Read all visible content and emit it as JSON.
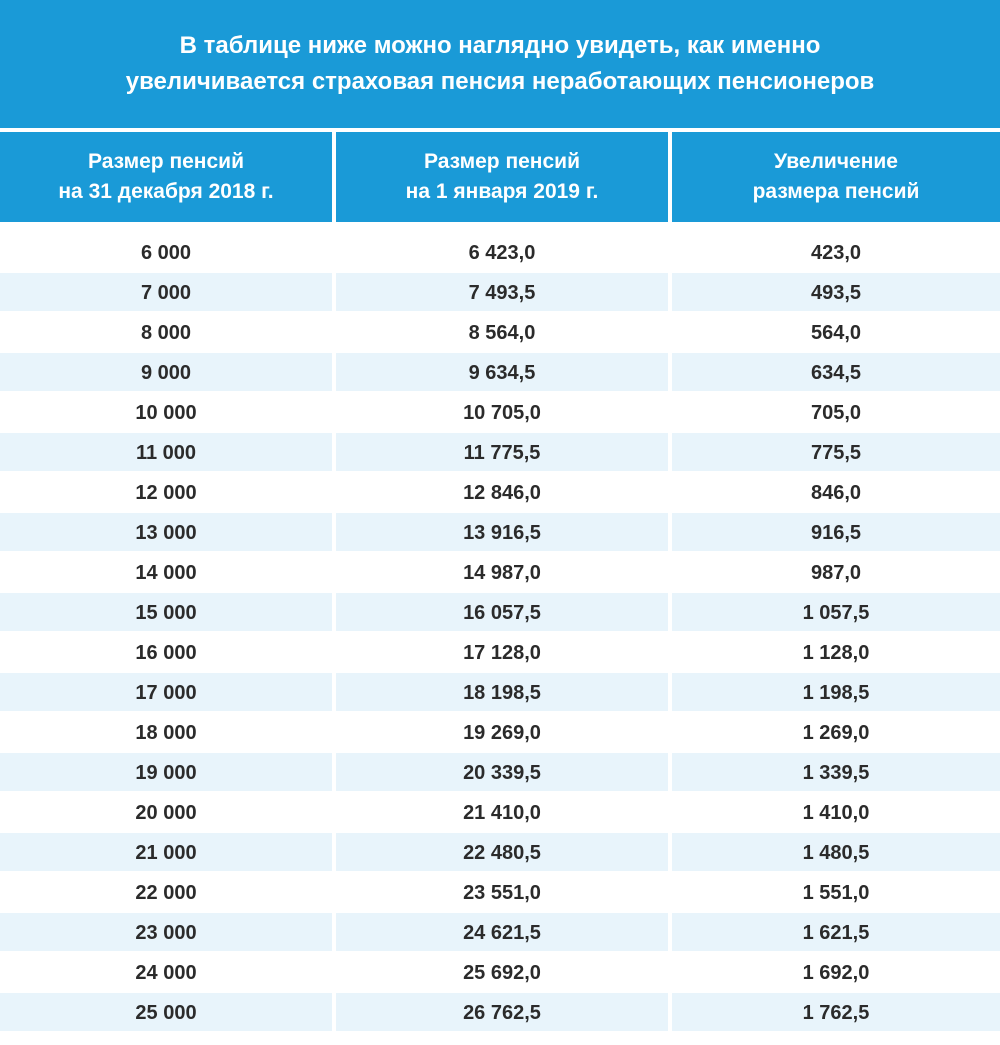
{
  "title": [
    "В таблице ниже можно наглядно увидеть, как именно",
    "увеличивается страховая пенсия неработающих пенсионеров"
  ],
  "headers": [
    [
      "Размер пенсий",
      "на 31 декабря 2018 г."
    ],
    [
      "Размер пенсий",
      "на 1 января 2019 г."
    ],
    [
      "Увеличение",
      "размера пенсий"
    ]
  ],
  "colors": {
    "accent": "#1a9ad7",
    "stripe": "#e8f4fb"
  },
  "rows": [
    [
      "6 000",
      "6 423,0",
      "423,0"
    ],
    [
      "7 000",
      "7 493,5",
      "493,5"
    ],
    [
      "8 000",
      "8 564,0",
      "564,0"
    ],
    [
      "9 000",
      "9 634,5",
      "634,5"
    ],
    [
      "10 000",
      "10 705,0",
      "705,0"
    ],
    [
      "11 000",
      "11 775,5",
      "775,5"
    ],
    [
      "12 000",
      "12 846,0",
      "846,0"
    ],
    [
      "13 000",
      "13 916,5",
      "916,5"
    ],
    [
      "14 000",
      "14 987,0",
      "987,0"
    ],
    [
      "15 000",
      "16 057,5",
      "1 057,5"
    ],
    [
      "16 000",
      "17 128,0",
      "1 128,0"
    ],
    [
      "17 000",
      "18 198,5",
      "1 198,5"
    ],
    [
      "18 000",
      "19 269,0",
      "1 269,0"
    ],
    [
      "19 000",
      "20 339,5",
      "1 339,5"
    ],
    [
      "20 000",
      "21 410,0",
      "1 410,0"
    ],
    [
      "21 000",
      "22 480,5",
      "1 480,5"
    ],
    [
      "22 000",
      "23 551,0",
      "1 551,0"
    ],
    [
      "23 000",
      "24 621,5",
      "1 621,5"
    ],
    [
      "24 000",
      "25 692,0",
      "1 692,0"
    ],
    [
      "25 000",
      "26 762,5",
      "1 762,5"
    ]
  ]
}
